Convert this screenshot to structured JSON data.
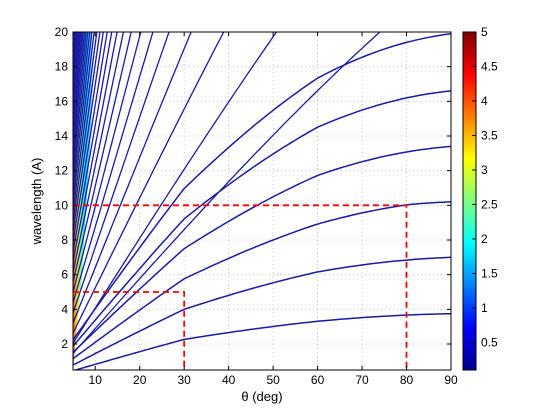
{
  "chart_data": {
    "type": "line",
    "title": "",
    "xlabel": "θ (deg)",
    "ylabel": "wavelength (A)",
    "xlim": [
      5,
      90
    ],
    "ylim": [
      0.5,
      20
    ],
    "x_ticks": [
      10,
      20,
      30,
      40,
      50,
      60,
      70,
      80,
      90
    ],
    "y_ticks": [
      2,
      4,
      6,
      8,
      10,
      12,
      14,
      16,
      18,
      20
    ],
    "grid": true,
    "line_color": "#1a1aa8",
    "series": [
      {
        "peak_wavelength": 3.75,
        "values": [
          [
            5,
            0.65
          ],
          [
            30,
            2.85
          ],
          [
            60,
            3.4
          ],
          [
            90,
            3.75
          ]
        ]
      },
      {
        "peak_wavelength": 7.0,
        "values": [
          [
            5,
            1.05
          ],
          [
            30,
            4.75
          ],
          [
            60,
            6.3
          ],
          [
            90,
            7.0
          ]
        ]
      },
      {
        "peak_wavelength": 10.2,
        "values": [
          [
            5,
            1.55
          ],
          [
            30,
            6.75
          ],
          [
            60,
            9.05
          ],
          [
            80,
            10.0
          ],
          [
            90,
            10.2
          ]
        ]
      },
      {
        "peak_wavelength": 13.4,
        "values": [
          [
            5,
            2.05
          ],
          [
            30,
            8.7
          ],
          [
            60,
            11.9
          ],
          [
            90,
            13.4
          ]
        ]
      },
      {
        "peak_wavelength": 16.6,
        "values": [
          [
            5,
            2.5
          ],
          [
            30,
            10.6
          ],
          [
            60,
            14.7
          ],
          [
            90,
            16.6
          ]
        ]
      },
      {
        "peak_wavelength": 19.9,
        "values": [
          [
            5,
            3.0
          ],
          [
            30,
            12.5
          ],
          [
            60,
            17.5
          ],
          [
            90,
            19.9
          ]
        ]
      }
    ],
    "fan_lines": {
      "count": 32,
      "note_visible": false
    },
    "colormap_region": {
      "colorbar_range": [
        0.1,
        5
      ],
      "colorbar_ticks": [
        0.5,
        1,
        1.5,
        2,
        2.5,
        3,
        3.5,
        4,
        4.5,
        5
      ]
    },
    "annotations": [
      {
        "style": "dashed",
        "color": "#ff0000",
        "points": [
          [
            5,
            10
          ],
          [
            80,
            10
          ],
          [
            80,
            0.5
          ]
        ]
      },
      {
        "style": "dashed",
        "color": "#ff0000",
        "points": [
          [
            5,
            5
          ],
          [
            30,
            5
          ],
          [
            30,
            0.5
          ]
        ]
      }
    ]
  }
}
